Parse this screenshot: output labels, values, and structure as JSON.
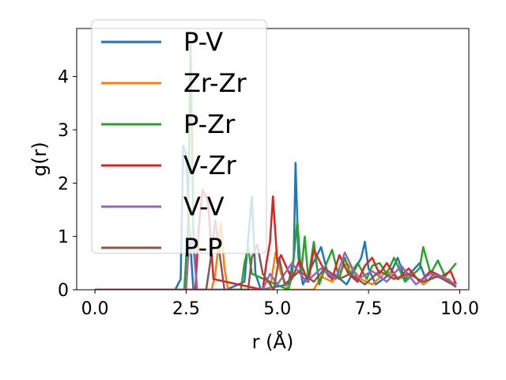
{
  "chart_data": {
    "type": "line",
    "xlabel": "r (Å)",
    "ylabel": "g(r)",
    "xlim": [
      -0.5,
      10.25
    ],
    "ylim": [
      0,
      4.9
    ],
    "xticks": [
      0.0,
      2.5,
      5.0,
      7.5,
      10.0
    ],
    "xtick_labels": [
      "0.0",
      "2.5",
      "5.0",
      "7.5",
      "10.0"
    ],
    "yticks": [
      0,
      1,
      2,
      3,
      4
    ],
    "ytick_labels": [
      "0",
      "1",
      "2",
      "3",
      "4"
    ],
    "grid": false,
    "legend_position": "upper-left",
    "series": [
      {
        "name": "P-V",
        "color": "#1f77b4",
        "x": [
          0.0,
          2.2,
          2.35,
          2.42,
          2.5,
          2.58,
          2.7,
          3.6,
          4.1,
          4.3,
          4.4,
          4.55,
          5.3,
          5.45,
          5.5,
          5.58,
          5.7,
          6.2,
          6.4,
          6.55,
          6.9,
          7.1,
          7.3,
          7.4,
          7.5,
          7.7,
          8.1,
          8.3,
          8.5,
          8.9,
          9.1,
          9.3,
          9.6,
          9.85
        ],
        "y": [
          0.0,
          0.0,
          0.2,
          2.7,
          2.55,
          1.2,
          0.0,
          0.0,
          0.15,
          1.75,
          0.3,
          0.0,
          0.1,
          0.6,
          2.38,
          0.6,
          0.1,
          0.8,
          0.25,
          0.3,
          0.1,
          0.35,
          0.6,
          0.9,
          0.4,
          0.1,
          0.3,
          0.6,
          0.2,
          0.5,
          0.15,
          0.3,
          0.2,
          0.1
        ]
      },
      {
        "name": "Zr-Zr",
        "color": "#ff7f0e",
        "x": [
          0.0,
          3.2,
          3.3,
          3.45,
          3.55,
          3.65,
          4.8,
          4.95,
          5.1,
          5.3,
          6.0,
          6.2,
          6.5,
          6.9,
          7.3,
          7.6,
          8.0,
          8.3,
          8.7,
          9.0,
          9.3,
          9.7,
          9.9
        ],
        "y": [
          0.0,
          0.0,
          0.3,
          1.25,
          0.4,
          0.0,
          0.0,
          0.7,
          0.3,
          0.0,
          0.0,
          0.25,
          0.15,
          0.5,
          0.2,
          0.1,
          0.35,
          0.2,
          0.3,
          0.1,
          0.25,
          0.2,
          0.05
        ]
      },
      {
        "name": "P-Zr",
        "color": "#2ca02c",
        "x": [
          0.0,
          2.45,
          2.55,
          2.62,
          2.7,
          2.8,
          4.0,
          4.1,
          4.2,
          4.3,
          5.3,
          5.4,
          5.55,
          5.65,
          5.75,
          5.85,
          6.0,
          6.15,
          6.35,
          6.5,
          6.7,
          6.85,
          7.0,
          7.2,
          7.45,
          7.6,
          7.8,
          8.0,
          8.2,
          8.5,
          8.9,
          9.0,
          9.2,
          9.4,
          9.6,
          9.9
        ],
        "y": [
          0.0,
          0.0,
          1.2,
          4.6,
          1.1,
          0.0,
          0.0,
          0.5,
          0.8,
          0.3,
          0.0,
          0.25,
          1.3,
          0.3,
          1.0,
          0.2,
          0.9,
          0.1,
          0.5,
          0.75,
          0.2,
          0.6,
          0.3,
          0.5,
          0.2,
          0.45,
          0.5,
          0.3,
          0.6,
          0.15,
          0.4,
          0.8,
          0.3,
          0.55,
          0.25,
          0.5
        ]
      },
      {
        "name": "V-Zr",
        "color": "#d62728",
        "x": [
          0.0,
          2.75,
          2.85,
          2.95,
          3.1,
          3.25,
          4.6,
          4.7,
          4.8,
          4.88,
          5.0,
          5.1,
          5.4,
          5.6,
          5.85,
          6.0,
          6.3,
          6.5,
          6.7,
          6.95,
          7.2,
          7.4,
          7.6,
          7.8,
          8.0,
          8.3,
          8.6,
          8.9,
          9.2,
          9.5,
          9.75,
          9.9
        ],
        "y": [
          0.0,
          0.0,
          1.2,
          1.88,
          1.65,
          0.2,
          0.0,
          0.5,
          0.9,
          1.75,
          0.5,
          0.65,
          0.2,
          0.55,
          0.15,
          0.75,
          0.35,
          0.2,
          0.65,
          0.3,
          0.15,
          0.45,
          0.6,
          0.3,
          0.5,
          0.2,
          0.4,
          0.15,
          0.35,
          0.25,
          0.35,
          0.1
        ]
      },
      {
        "name": "V-V",
        "color": "#9467bd",
        "x": [
          0.0,
          2.5,
          2.6,
          2.7,
          2.8,
          4.6,
          4.8,
          5.0,
          5.4,
          5.8,
          6.2,
          6.6,
          6.85,
          7.2,
          7.6,
          8.0,
          8.4,
          8.8,
          9.2,
          9.5,
          9.9
        ],
        "y": [
          0.0,
          0.0,
          1.1,
          0.8,
          0.0,
          0.0,
          0.3,
          0.1,
          0.5,
          0.15,
          0.4,
          0.2,
          0.7,
          0.2,
          0.35,
          0.15,
          0.45,
          0.1,
          0.3,
          0.25,
          0.1
        ]
      },
      {
        "name": "P-P",
        "color": "#8c564b",
        "x": [
          0.0,
          3.05,
          3.2,
          3.3,
          3.45,
          3.55,
          4.2,
          4.3,
          4.45,
          4.6,
          4.9,
          5.05,
          5.2,
          5.6,
          6.0,
          6.3,
          6.7,
          7.0,
          7.4,
          7.8,
          8.2,
          8.6,
          9.0,
          9.4,
          9.8,
          9.9
        ],
        "y": [
          0.0,
          0.0,
          0.7,
          1.3,
          0.5,
          0.0,
          0.0,
          0.6,
          0.85,
          0.3,
          0.0,
          0.6,
          0.1,
          0.35,
          0.15,
          0.4,
          0.2,
          0.3,
          0.1,
          0.35,
          0.2,
          0.3,
          0.15,
          0.25,
          0.1,
          0.05
        ]
      }
    ]
  }
}
